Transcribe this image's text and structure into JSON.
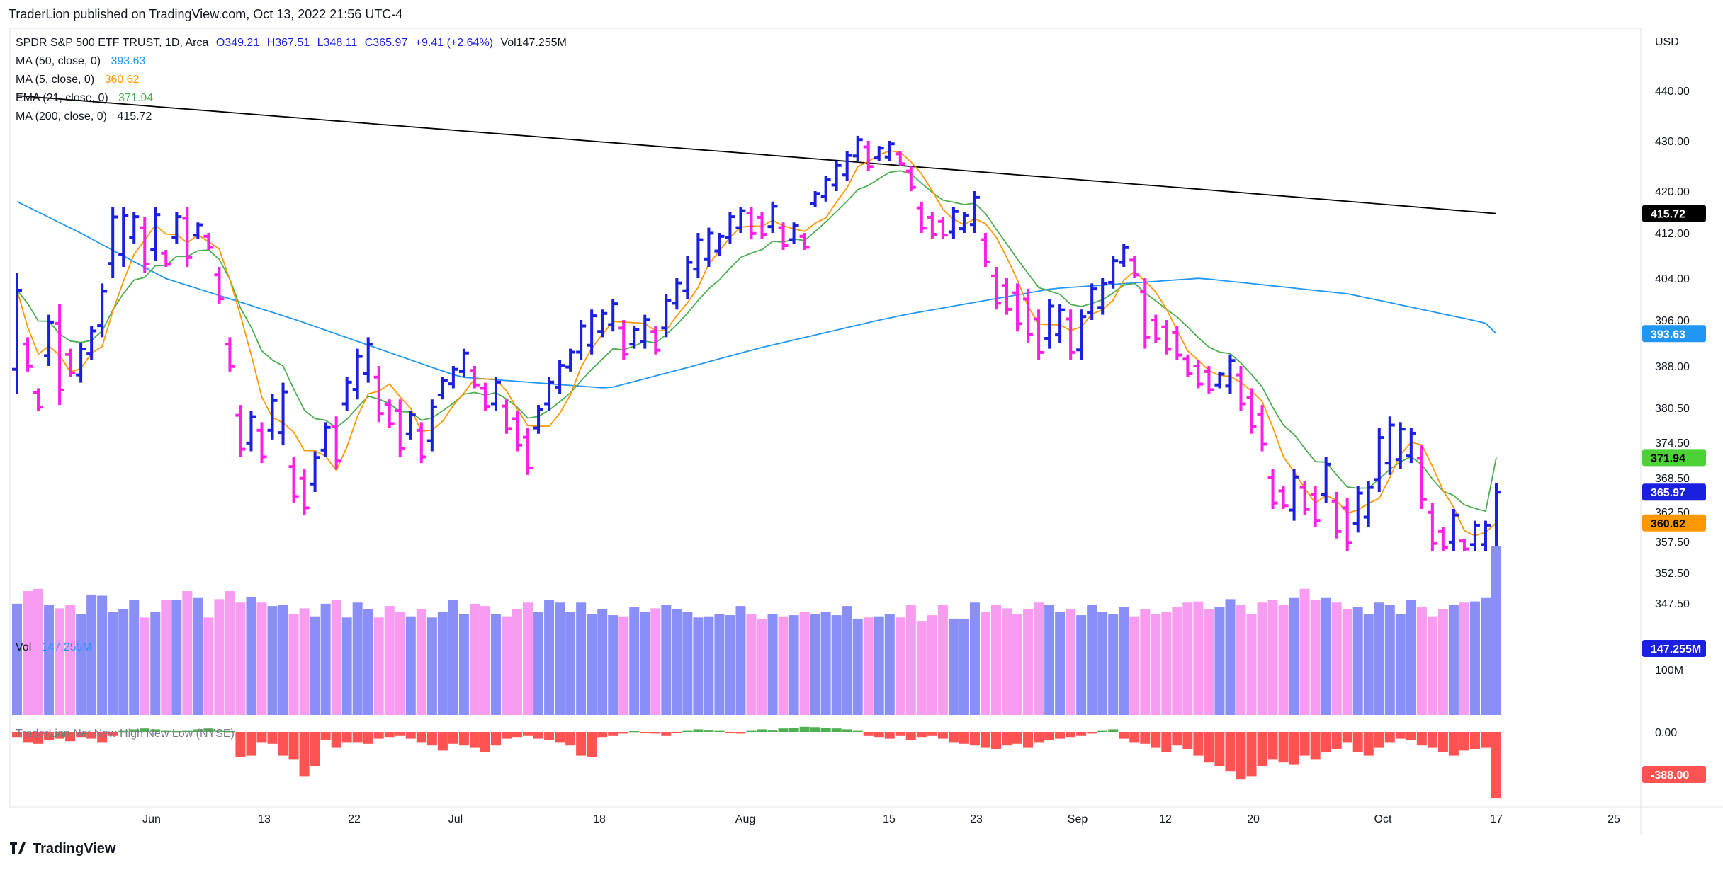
{
  "header": {
    "published": "TraderLion published on TradingView.com, Oct 13, 2022 21:56 UTC-4"
  },
  "legend": {
    "symbol": "SPDR S&P 500 ETF TRUST, 1D, Arca",
    "open": "O349.21",
    "high": "H367.51",
    "low": "L348.11",
    "close": "C365.97",
    "change": "+9.41 (+2.64%)",
    "volume": "Vol147.255M",
    "ma50_label": "MA (50, close, 0)",
    "ma50_value": "393.63",
    "ma5_label": "MA (5, close, 0)",
    "ma5_value": "360.62",
    "ema21_label": "EMA (21, close, 0)",
    "ema21_value": "371.94",
    "ma200_label": "MA (200, close, 0)",
    "ma200_value": "415.72",
    "vol_label": "Vol",
    "vol_value": "147.255M",
    "nhnl_label": "TraderLion Net New High New Low (NYSE)"
  },
  "brand": "TradingView",
  "colors": {
    "up_bar": "#1b1fe0",
    "down_bar": "#ff1fe6",
    "ma50": "#2196f3",
    "ma5": "#ff9800",
    "ema21": "#4caf50",
    "ma200": "#000000",
    "vol_up": "#8a8ff7",
    "vol_down": "#f79cf0",
    "nhnl_pos": "#4caf50",
    "nhnl_neg": "#ff5252"
  },
  "chart_data": {
    "type": "ohlc",
    "currency": "USD",
    "price_axis_ticks": [
      "440.00",
      "430.00",
      "420.00",
      "412.00",
      "404.00",
      "396.00",
      "388.00",
      "380.50",
      "374.50",
      "368.50",
      "362.50",
      "357.50",
      "352.50",
      "347.50"
    ],
    "time_axis_labels": [
      "Jun",
      "13",
      "22",
      "Jul",
      "18",
      "Aug",
      "15",
      "23",
      "Sep",
      "12",
      "20",
      "Oct",
      "17",
      "25"
    ],
    "last_value_tags": {
      "ma200": "415.72",
      "ma50": "393.63",
      "ema21": "371.94",
      "close": "365.97",
      "ma5": "360.62",
      "volume": "147.255M",
      "nhnl": "-388.00"
    },
    "volume_axis_ticks": [
      "100M"
    ],
    "nhnl_axis_ticks": [
      "0.00"
    ],
    "bars": [
      [
        405,
        383
      ],
      [
        393,
        387
      ],
      [
        384,
        380
      ],
      [
        397,
        388
      ],
      [
        399,
        381
      ],
      [
        391,
        386
      ],
      [
        392,
        385
      ],
      [
        395,
        389
      ],
      [
        403,
        393
      ],
      [
        417,
        404
      ],
      [
        417,
        406
      ],
      [
        416,
        410
      ],
      [
        415,
        405
      ],
      [
        417,
        407
      ],
      [
        409,
        406
      ],
      [
        416,
        410
      ],
      [
        417,
        406
      ],
      [
        414,
        411
      ],
      [
        412,
        409
      ],
      [
        406,
        399
      ],
      [
        393,
        387
      ],
      [
        381,
        372
      ],
      [
        380,
        373
      ],
      [
        378,
        371
      ],
      [
        383,
        375
      ],
      [
        385,
        374
      ],
      [
        372,
        364
      ],
      [
        370,
        362
      ],
      [
        373,
        366
      ],
      [
        378,
        372
      ],
      [
        379,
        370
      ],
      [
        386,
        380
      ],
      [
        391,
        382
      ],
      [
        393,
        385
      ],
      [
        388,
        378
      ],
      [
        382,
        377
      ],
      [
        382,
        372
      ],
      [
        380,
        375
      ],
      [
        378,
        371
      ],
      [
        382,
        373
      ],
      [
        386,
        382
      ],
      [
        388,
        384
      ],
      [
        391,
        386
      ],
      [
        388,
        384
      ],
      [
        385,
        380
      ],
      [
        386,
        380
      ],
      [
        382,
        376
      ],
      [
        380,
        373
      ],
      [
        377,
        369
      ],
      [
        381,
        376
      ],
      [
        386,
        380
      ],
      [
        389,
        383
      ],
      [
        391,
        387
      ],
      [
        396,
        389
      ],
      [
        398,
        390
      ],
      [
        398,
        393
      ],
      [
        400,
        394
      ],
      [
        396,
        389
      ],
      [
        395,
        391
      ],
      [
        397,
        391
      ],
      [
        395,
        390
      ],
      [
        401,
        393
      ],
      [
        404,
        398
      ],
      [
        408,
        400
      ],
      [
        412,
        404
      ],
      [
        413,
        406
      ],
      [
        412,
        408
      ],
      [
        416,
        410
      ],
      [
        417,
        412
      ],
      [
        417,
        411
      ],
      [
        416,
        411
      ],
      [
        418,
        412
      ],
      [
        414,
        409
      ],
      [
        414,
        410
      ],
      [
        412,
        409
      ],
      [
        420,
        417
      ],
      [
        423,
        418
      ],
      [
        426,
        420
      ],
      [
        428,
        422
      ],
      [
        431,
        426
      ],
      [
        430,
        424
      ],
      [
        429,
        426
      ],
      [
        430,
        426
      ],
      [
        428,
        425
      ],
      [
        425,
        420
      ],
      [
        418,
        412
      ],
      [
        416,
        411
      ],
      [
        415,
        411
      ],
      [
        417,
        411
      ],
      [
        416,
        412
      ],
      [
        420,
        412
      ],
      [
        412,
        406
      ],
      [
        406,
        398
      ],
      [
        404,
        397
      ],
      [
        403,
        394
      ],
      [
        402,
        392
      ],
      [
        398,
        389
      ],
      [
        400,
        391
      ],
      [
        399,
        392
      ],
      [
        398,
        389
      ],
      [
        398,
        389
      ],
      [
        403,
        396
      ],
      [
        404,
        397
      ],
      [
        408,
        402
      ],
      [
        410,
        406
      ],
      [
        408,
        404
      ],
      [
        404,
        391
      ],
      [
        397,
        392
      ],
      [
        396,
        390
      ],
      [
        395,
        389
      ],
      [
        390,
        386
      ],
      [
        389,
        384
      ],
      [
        388,
        383
      ],
      [
        387,
        384
      ],
      [
        390,
        383
      ],
      [
        388,
        380
      ],
      [
        384,
        376
      ],
      [
        381,
        373
      ],
      [
        370,
        363
      ],
      [
        367,
        363
      ],
      [
        370,
        361
      ],
      [
        368,
        362
      ],
      [
        367,
        360
      ],
      [
        372,
        364
      ],
      [
        366,
        358
      ],
      [
        365,
        356
      ],
      [
        367,
        359
      ],
      [
        368,
        360
      ],
      [
        377,
        366
      ],
      [
        379,
        369
      ],
      [
        378,
        370
      ],
      [
        377,
        371
      ],
      [
        374,
        363
      ],
      [
        364,
        356
      ],
      [
        360,
        356
      ],
      [
        363,
        356
      ],
      [
        358,
        356
      ],
      [
        361,
        356
      ],
      [
        361,
        356
      ],
      [
        367.51,
        348.11
      ]
    ],
    "volume": [
      97,
      108,
      110,
      96,
      93,
      96,
      88,
      105,
      104,
      90,
      92,
      100,
      85,
      90,
      100,
      100,
      108,
      102,
      85,
      101,
      108,
      98,
      103,
      98,
      95,
      96,
      88,
      93,
      86,
      97,
      100,
      85,
      98,
      92,
      85,
      95,
      90,
      86,
      92,
      85,
      90,
      100,
      88,
      97,
      95,
      88,
      86,
      92,
      98,
      90,
      100,
      98,
      90,
      98,
      88,
      92,
      87,
      86,
      94,
      90,
      93,
      96,
      92,
      90,
      85,
      86,
      88,
      87,
      95,
      88,
      84,
      88,
      86,
      87,
      90,
      88,
      90,
      87,
      95,
      84,
      85,
      86,
      88,
      85,
      96,
      82,
      87,
      96,
      84,
      84,
      98,
      90,
      96,
      93,
      88,
      92,
      98,
      96,
      90,
      92,
      87,
      96,
      90,
      88,
      94,
      86,
      92,
      88,
      90,
      94,
      98,
      99,
      92,
      94,
      101,
      96,
      88,
      98,
      100,
      96,
      102,
      110,
      100,
      102,
      98,
      92,
      94,
      88,
      98,
      96,
      88,
      100,
      94,
      86,
      92,
      96,
      98,
      99,
      102,
      147
    ],
    "nhnl": [
      -30,
      -60,
      -70,
      -50,
      -40,
      -55,
      -30,
      -40,
      -60,
      -20,
      10,
      15,
      20,
      15,
      10,
      5,
      10,
      15,
      20,
      10,
      5,
      -150,
      -140,
      -60,
      -70,
      -140,
      -160,
      -260,
      -200,
      -50,
      -90,
      -60,
      -60,
      -70,
      -40,
      -30,
      -20,
      -40,
      -60,
      -80,
      -110,
      -70,
      -80,
      -90,
      -120,
      -80,
      -40,
      -30,
      -20,
      -40,
      -50,
      -60,
      -80,
      -140,
      -150,
      -30,
      -20,
      -10,
      5,
      -5,
      -10,
      -20,
      -5,
      10,
      15,
      12,
      10,
      -5,
      -10,
      10,
      15,
      12,
      20,
      25,
      30,
      28,
      25,
      20,
      15,
      10,
      -20,
      -30,
      -40,
      -20,
      -50,
      -30,
      -20,
      -40,
      -60,
      -70,
      -80,
      -90,
      -100,
      -80,
      -70,
      -90,
      -60,
      -50,
      -40,
      -30,
      -20,
      -10,
      10,
      15,
      -40,
      -60,
      -70,
      -90,
      -120,
      -80,
      -100,
      -140,
      -180,
      -200,
      -230,
      -280,
      -260,
      -200,
      -160,
      -180,
      -190,
      -140,
      -160,
      -120,
      -100,
      -60,
      -120,
      -140,
      -90,
      -60,
      -40,
      -50,
      -80,
      -90,
      -120,
      -140,
      -110,
      -100,
      -90,
      -388
    ]
  }
}
